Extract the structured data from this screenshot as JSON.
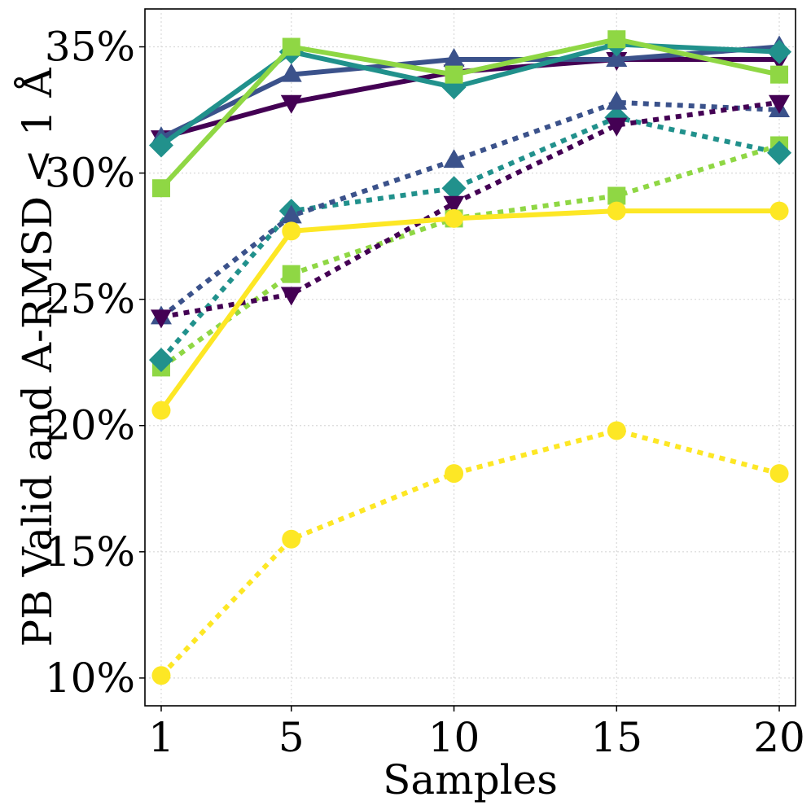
{
  "chart_data": {
    "type": "line",
    "title": "",
    "xlabel": "Samples",
    "ylabel": "PB Valid and A-RMSD < 1 Å",
    "x": [
      1,
      5,
      10,
      15,
      20
    ],
    "xlim": [
      0.5,
      20.5
    ],
    "ylim": [
      8.9,
      36.5
    ],
    "xticks": [
      1,
      5,
      10,
      15,
      20
    ],
    "yticks": [
      10,
      15,
      20,
      25,
      30,
      35
    ],
    "ytick_labels": [
      "10%",
      "15%",
      "20%",
      "25%",
      "30%",
      "35%"
    ],
    "xtick_labels": [
      "1",
      "5",
      "10",
      "15",
      "20"
    ],
    "grid": true,
    "legend": "none",
    "series": [
      {
        "name": "series-1-solid",
        "color": "#440154",
        "style": "solid",
        "marker": "triangle-down",
        "values": [
          31.4,
          32.8,
          34.0,
          34.5,
          34.5
        ]
      },
      {
        "name": "series-2-solid",
        "color": "#3b528b",
        "style": "solid",
        "marker": "triangle-up",
        "values": [
          31.4,
          33.9,
          34.5,
          34.5,
          35.0
        ]
      },
      {
        "name": "series-3-solid",
        "color": "#21918c",
        "style": "solid",
        "marker": "diamond",
        "values": [
          31.1,
          34.8,
          33.4,
          35.1,
          34.8
        ]
      },
      {
        "name": "series-4-solid",
        "color": "#8fd744",
        "style": "solid",
        "marker": "square",
        "values": [
          29.4,
          35.0,
          33.9,
          35.3,
          33.9
        ]
      },
      {
        "name": "series-5-solid",
        "color": "#fde725",
        "style": "solid",
        "marker": "circle",
        "values": [
          20.6,
          27.7,
          28.2,
          28.5,
          28.5
        ]
      },
      {
        "name": "series-1-dotted",
        "color": "#440154",
        "style": "dotted",
        "marker": "triangle-down",
        "values": [
          24.3,
          25.2,
          28.8,
          31.9,
          32.8
        ]
      },
      {
        "name": "series-2-dotted",
        "color": "#3b528b",
        "style": "dotted",
        "marker": "triangle-up",
        "values": [
          24.3,
          28.3,
          30.5,
          32.8,
          32.5
        ]
      },
      {
        "name": "series-3-dotted",
        "color": "#21918c",
        "style": "dotted",
        "marker": "diamond",
        "values": [
          22.6,
          28.5,
          29.4,
          32.2,
          30.8
        ]
      },
      {
        "name": "series-4-dotted",
        "color": "#8fd744",
        "style": "dotted",
        "marker": "square",
        "values": [
          22.3,
          26.0,
          28.2,
          29.1,
          31.1
        ]
      },
      {
        "name": "series-5-dotted",
        "color": "#fde725",
        "style": "dotted",
        "marker": "circle",
        "values": [
          10.1,
          15.5,
          18.1,
          19.8,
          18.1
        ]
      }
    ]
  }
}
